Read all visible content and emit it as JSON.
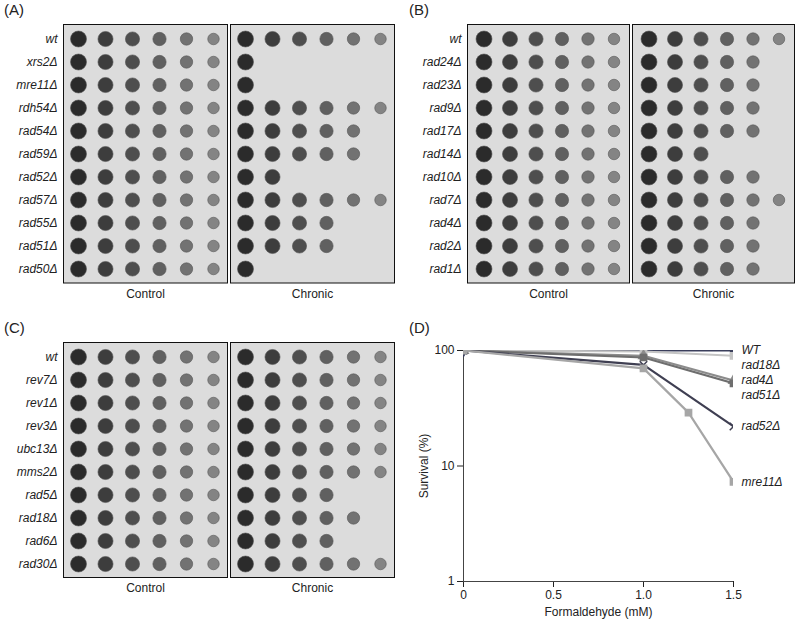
{
  "spot_assays": [
    {
      "label": "(A)",
      "conditions": [
        "Control",
        "Chronic"
      ],
      "strains": [
        {
          "name": "wt",
          "spots": [
            6,
            6
          ]
        },
        {
          "name": "xrs2Δ",
          "spots": [
            6,
            1
          ]
        },
        {
          "name": "mre11Δ",
          "spots": [
            6,
            1
          ]
        },
        {
          "name": "rdh54Δ",
          "spots": [
            6,
            6
          ]
        },
        {
          "name": "rad54Δ",
          "spots": [
            6,
            5
          ]
        },
        {
          "name": "rad59Δ",
          "spots": [
            6,
            5
          ]
        },
        {
          "name": "rad52Δ",
          "spots": [
            6,
            2
          ]
        },
        {
          "name": "rad57Δ",
          "spots": [
            6,
            6
          ]
        },
        {
          "name": "rad55Δ",
          "spots": [
            6,
            4
          ]
        },
        {
          "name": "rad51Δ",
          "spots": [
            6,
            4
          ]
        },
        {
          "name": "rad50Δ",
          "spots": [
            6,
            1
          ]
        }
      ]
    },
    {
      "label": "(B)",
      "conditions": [
        "Control",
        "Chronic"
      ],
      "strains": [
        {
          "name": "wt",
          "spots": [
            6,
            6
          ]
        },
        {
          "name": "rad24Δ",
          "spots": [
            6,
            5
          ]
        },
        {
          "name": "rad23Δ",
          "spots": [
            6,
            5
          ]
        },
        {
          "name": "rad9Δ",
          "spots": [
            6,
            5
          ]
        },
        {
          "name": "rad17Δ",
          "spots": [
            6,
            5
          ]
        },
        {
          "name": "rad14Δ",
          "spots": [
            6,
            3
          ]
        },
        {
          "name": "rad10Δ",
          "spots": [
            6,
            5
          ]
        },
        {
          "name": "rad7Δ",
          "spots": [
            6,
            6
          ]
        },
        {
          "name": "rad4Δ",
          "spots": [
            6,
            5
          ]
        },
        {
          "name": "rad2Δ",
          "spots": [
            6,
            5
          ]
        },
        {
          "name": "rad1Δ",
          "spots": [
            6,
            5
          ]
        }
      ]
    },
    {
      "label": "(C)",
      "conditions": [
        "Control",
        "Chronic"
      ],
      "strains": [
        {
          "name": "wt",
          "spots": [
            6,
            6
          ]
        },
        {
          "name": "rev7Δ",
          "spots": [
            6,
            6
          ]
        },
        {
          "name": "rev1Δ",
          "spots": [
            6,
            6
          ]
        },
        {
          "name": "rev3Δ",
          "spots": [
            6,
            6
          ]
        },
        {
          "name": "ubc13Δ",
          "spots": [
            6,
            6
          ]
        },
        {
          "name": "mms2Δ",
          "spots": [
            6,
            6
          ]
        },
        {
          "name": "rad5Δ",
          "spots": [
            6,
            4
          ]
        },
        {
          "name": "rad18Δ",
          "spots": [
            6,
            5
          ]
        },
        {
          "name": "rad6Δ",
          "spots": [
            6,
            4
          ]
        },
        {
          "name": "rad30Δ",
          "spots": [
            6,
            6
          ]
        }
      ]
    }
  ],
  "chart_data": {
    "type": "line",
    "title": "(D)",
    "x_label": "Formaldehyde (mM)",
    "y_label": "Survival (%)",
    "log": "y",
    "xlim": [
      0,
      1.5
    ],
    "xticks": [
      0,
      0.5,
      {
        "value": 1,
        "label": "1.0"
      },
      1.5
    ],
    "ylim": [
      1,
      100
    ],
    "yticks": [
      1,
      10,
      100
    ],
    "series": [
      {
        "name": "WT",
        "color": "#3b3f5c",
        "marker": "diamond",
        "x": [
          0,
          1,
          1.5
        ],
        "values": [
          100,
          100,
          100
        ]
      },
      {
        "name": "rad18Δ",
        "color": "#c4c4c4",
        "marker": "square",
        "x": [
          0,
          1,
          1.5
        ],
        "values": [
          100,
          98,
          90
        ]
      },
      {
        "name": "rad4Δ",
        "color": "#8c8c8c",
        "marker": "triangle",
        "x": [
          0,
          1,
          1.5
        ],
        "values": [
          100,
          90,
          55
        ]
      },
      {
        "name": "rad51Δ",
        "color": "#6e6e6e",
        "marker": "square",
        "x": [
          0,
          1,
          1.5
        ],
        "values": [
          100,
          87,
          52
        ]
      },
      {
        "name": "rad52Δ",
        "color": "#3f3f52",
        "marker": "times",
        "x": [
          0,
          1,
          1.5
        ],
        "values": [
          100,
          75,
          22
        ]
      },
      {
        "name": "mre11Δ",
        "color": "#a6a6a6",
        "marker": "square",
        "x": [
          0,
          1,
          1.25,
          1.5
        ],
        "values": [
          100,
          70,
          29,
          7.3
        ]
      }
    ]
  }
}
